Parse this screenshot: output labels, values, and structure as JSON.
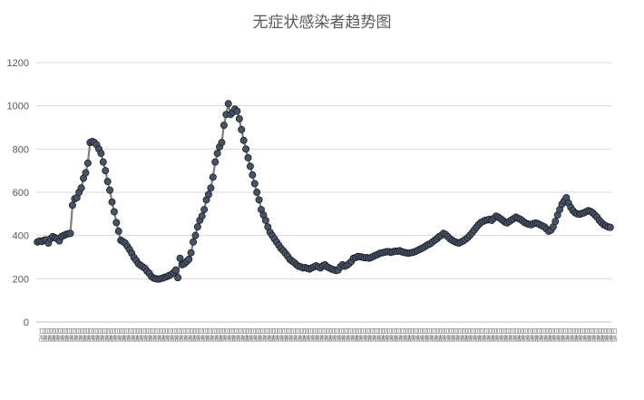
{
  "chart_data": {
    "type": "line",
    "title": "无症状感染者趋势图",
    "xlabel": "",
    "ylabel": "",
    "ylim": [
      0,
      1200
    ],
    "yticks": [
      0,
      200,
      400,
      600,
      800,
      1000,
      1200
    ],
    "grid": true,
    "legend": "none",
    "colors": {
      "line": "#7f7f7f",
      "marker": "#44546a",
      "marker_edge": "#1f1f1f",
      "grid": "#d9d9d9"
    },
    "series": [
      {
        "values": [
          370,
          375,
          372,
          378,
          380,
          365,
          385,
          395,
          390,
          385,
          375,
          395,
          400,
          405,
          408,
          410,
          540,
          570,
          575,
          600,
          620,
          665,
          690,
          735,
          830,
          835,
          830,
          820,
          800,
          780,
          740,
          700,
          650,
          610,
          555,
          510,
          460,
          420,
          378,
          372,
          365,
          350,
          335,
          318,
          298,
          285,
          270,
          262,
          255,
          248,
          235,
          225,
          210,
          203,
          200,
          198,
          200,
          203,
          207,
          210,
          215,
          220,
          228,
          240,
          205,
          295,
          265,
          270,
          280,
          290,
          320,
          370,
          400,
          440,
          470,
          490,
          520,
          565,
          590,
          620,
          670,
          740,
          780,
          810,
          830,
          910,
          960,
          1010,
          960,
          970,
          985,
          975,
          940,
          890,
          840,
          800,
          760,
          720,
          680,
          640,
          600,
          565,
          520,
          495,
          470,
          440,
          415,
          400,
          385,
          370,
          355,
          340,
          330,
          318,
          305,
          290,
          282,
          275,
          265,
          258,
          255,
          250,
          252,
          248,
          245,
          250,
          255,
          260,
          255,
          250,
          260,
          265,
          255,
          250,
          245,
          242,
          238,
          240,
          255,
          265,
          258,
          262,
          270,
          280,
          295,
          298,
          303,
          302,
          300,
          297,
          298,
          295,
          298,
          303,
          308,
          312,
          318,
          320,
          322,
          325,
          325,
          322,
          325,
          328,
          327,
          330,
          325,
          322,
          320,
          318,
          320,
          322,
          325,
          330,
          335,
          340,
          345,
          352,
          358,
          362,
          370,
          378,
          385,
          395,
          400,
          410,
          405,
          395,
          385,
          378,
          372,
          368,
          365,
          370,
          375,
          382,
          390,
          400,
          412,
          425,
          438,
          450,
          460,
          465,
          470,
          472,
          475,
          470,
          480,
          490,
          485,
          478,
          470,
          462,
          458,
          465,
          472,
          478,
          485,
          480,
          475,
          468,
          460,
          455,
          452,
          450,
          455,
          458,
          455,
          450,
          445,
          440,
          430,
          420,
          425,
          440,
          465,
          495,
          520,
          545,
          560,
          575,
          550,
          530,
          515,
          505,
          500,
          498,
          502,
          505,
          510,
          515,
          512,
          505,
          495,
          485,
          470,
          460,
          450,
          445,
          440,
          438
        ]
      }
    ],
    "x_label_text": "日期"
  }
}
